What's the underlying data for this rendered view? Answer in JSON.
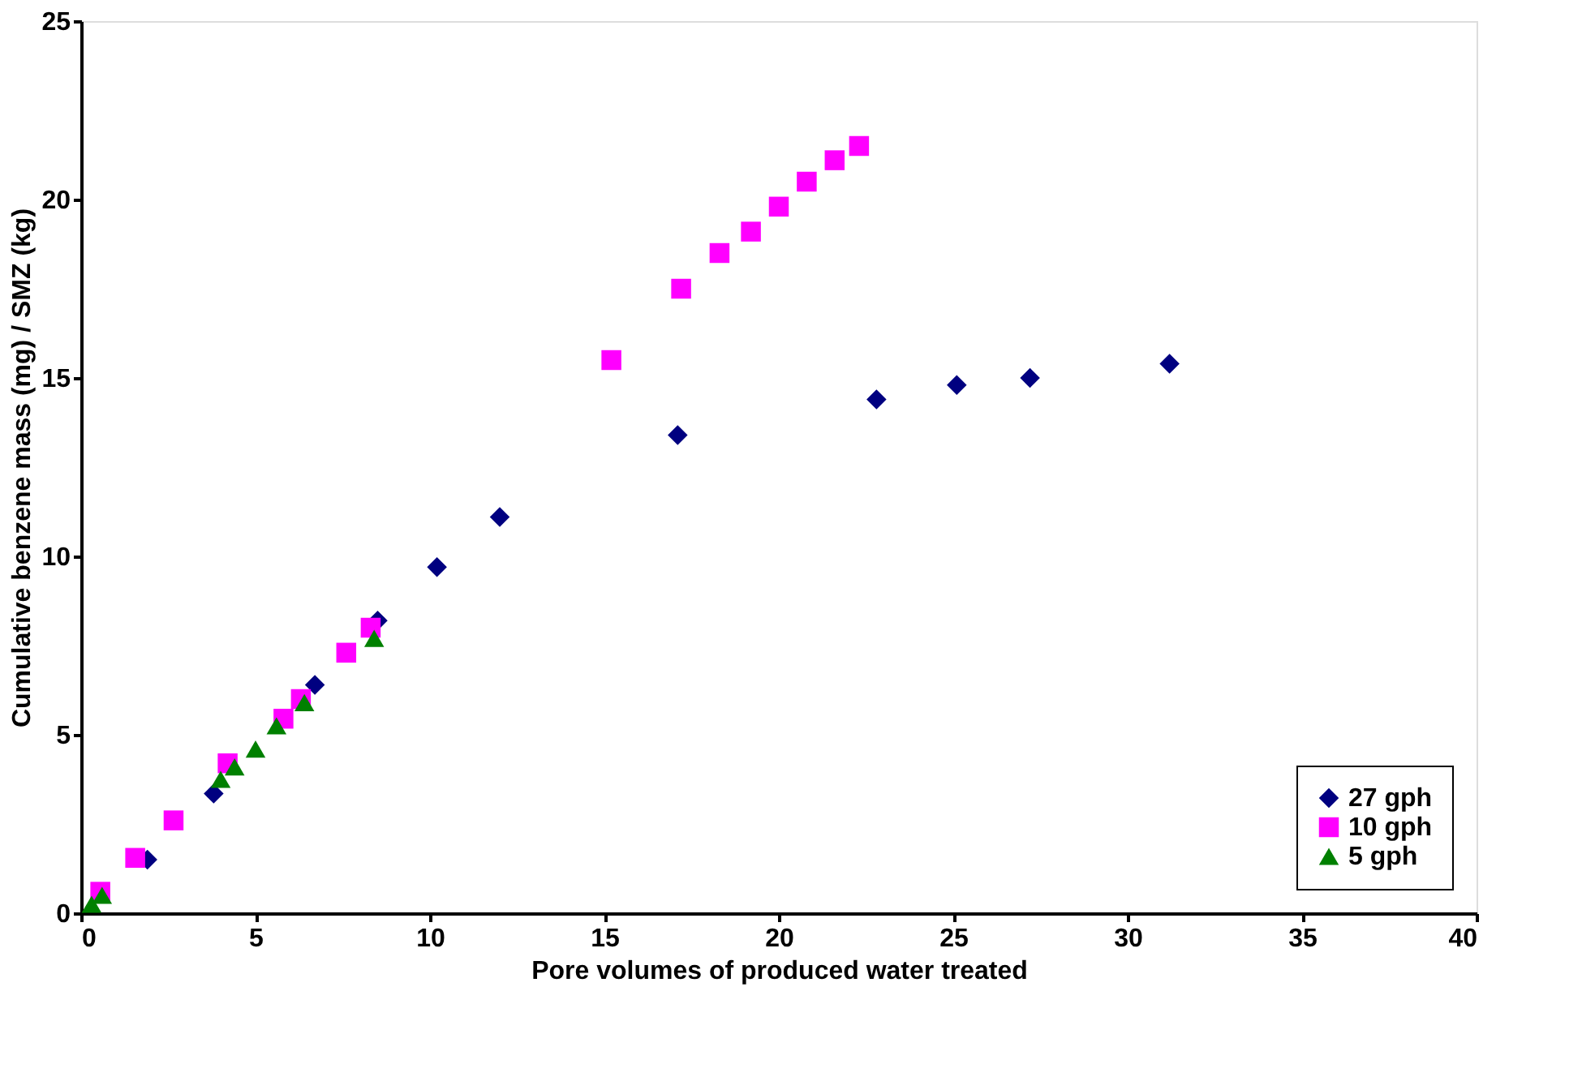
{
  "chart_data": {
    "type": "scatter",
    "xlabel": "Pore volumes of produced water treated",
    "ylabel": "Cumulative benzene mass (mg) / SMZ (kg)",
    "xlim": [
      0,
      40
    ],
    "xticks": [
      0,
      5,
      10,
      15,
      20,
      25,
      30,
      35,
      40
    ],
    "ylim": [
      0,
      25
    ],
    "yticks": [
      0,
      5,
      10,
      15,
      20,
      25
    ],
    "grid": false,
    "legend": "bottom right",
    "series": [
      {
        "name": "27 gph",
        "color": "#000080",
        "marker": "diamond",
        "x": [
          1.9,
          3.8,
          6.7,
          8.5,
          10.2,
          12.0,
          17.1,
          22.8,
          25.1,
          27.2,
          31.2
        ],
        "values": [
          1.5,
          3.35,
          6.4,
          8.2,
          9.7,
          11.1,
          13.4,
          14.4,
          14.8,
          15.0,
          15.4
        ]
      },
      {
        "name": "10 gph",
        "color": "#ff00ff",
        "marker": "square",
        "x": [
          0.55,
          1.55,
          2.65,
          4.2,
          5.8,
          6.3,
          7.6,
          8.3,
          15.2,
          17.2,
          18.3,
          19.2,
          20.0,
          20.8,
          21.6,
          22.3
        ],
        "values": [
          0.6,
          1.55,
          2.6,
          4.2,
          5.45,
          6.0,
          7.3,
          8.0,
          15.5,
          17.5,
          18.5,
          19.1,
          19.8,
          20.5,
          21.1,
          21.5
        ]
      },
      {
        "name": "5 gph",
        "color": "#008000",
        "marker": "triangle",
        "x": [
          0.3,
          0.6,
          4.0,
          4.4,
          5.0,
          5.6,
          6.4,
          8.4
        ],
        "values": [
          0.25,
          0.5,
          3.75,
          4.1,
          4.6,
          5.25,
          5.9,
          7.7
        ]
      }
    ]
  }
}
